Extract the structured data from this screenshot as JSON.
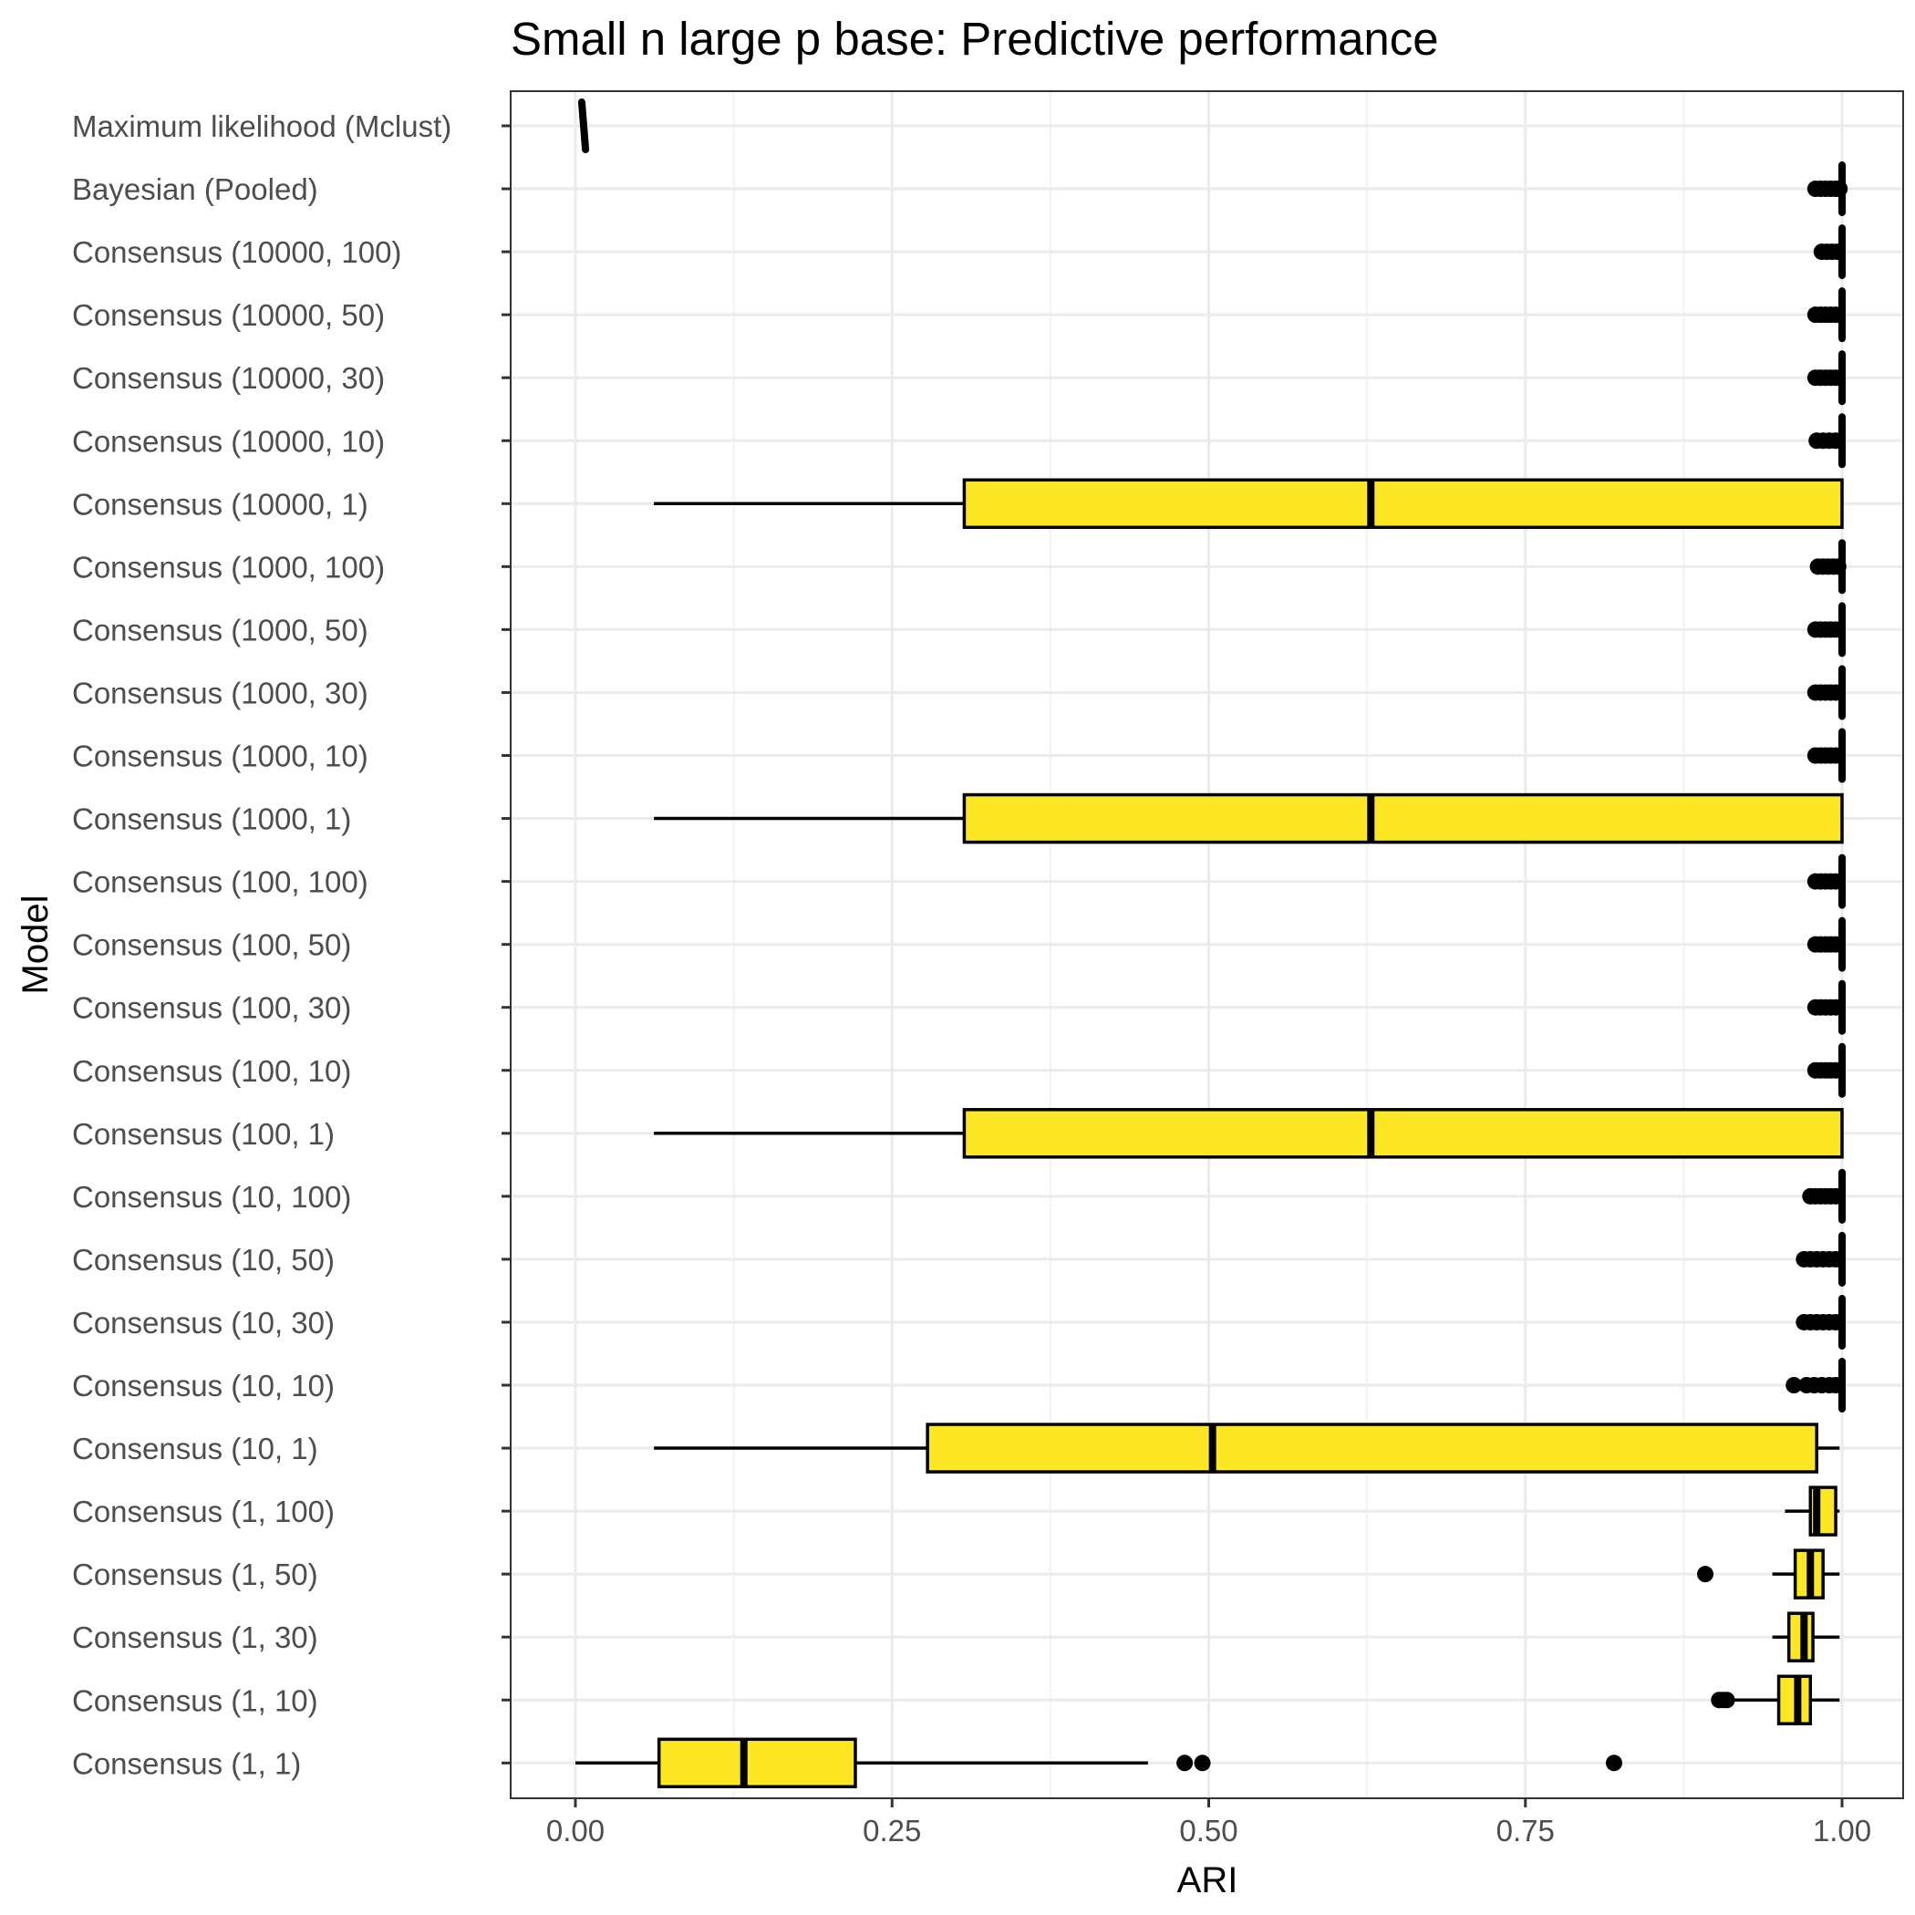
{
  "chart_data": {
    "type": "boxplot",
    "orientation": "horizontal",
    "title": "Small n large p base: Predictive performance",
    "xlabel": "ARI",
    "ylabel": "Model",
    "xlim": [
      -0.1,
      1.05
    ],
    "x_ticks": [
      0,
      0.25,
      0.5,
      0.75,
      1
    ],
    "x_tick_labels": [
      "0.00",
      "0.25",
      "0.50",
      "0.75",
      "1.00"
    ],
    "grid": true,
    "legend": "none",
    "box_fill": "#FDE725",
    "outline_color": "#000000",
    "categories": [
      "Maximum likelihood (Mclust)",
      "Bayesian (Pooled)",
      "Consensus (10000, 100)",
      "Consensus (10000, 50)",
      "Consensus (10000, 30)",
      "Consensus (10000, 10)",
      "Consensus (10000, 1)",
      "Consensus (1000, 100)",
      "Consensus (1000, 50)",
      "Consensus (1000, 30)",
      "Consensus (1000, 10)",
      "Consensus (1000, 1)",
      "Consensus (100, 100)",
      "Consensus (100, 50)",
      "Consensus (100, 30)",
      "Consensus (100, 10)",
      "Consensus (100, 1)",
      "Consensus (10, 100)",
      "Consensus (10, 50)",
      "Consensus (10, 30)",
      "Consensus (10, 10)",
      "Consensus (10, 1)",
      "Consensus (1, 100)",
      "Consensus (1, 50)",
      "Consensus (1, 30)",
      "Consensus (1, 10)",
      "Consensus (1, 1)"
    ],
    "boxes": [
      {
        "min": 0.005,
        "q1": 0.005,
        "median": 0.006,
        "q3": 0.008,
        "max": 0.008,
        "outliers": []
      },
      {
        "min": 1.0,
        "q1": 1.0,
        "median": 1.0,
        "q3": 1.0,
        "max": 1.0,
        "outliers": [
          0.979,
          0.983,
          0.987,
          0.991,
          0.995,
          0.998
        ]
      },
      {
        "min": 1.0,
        "q1": 1.0,
        "median": 1.0,
        "q3": 1.0,
        "max": 1.0,
        "outliers": [
          0.984,
          0.988,
          0.992,
          0.996
        ]
      },
      {
        "min": 1.0,
        "q1": 1.0,
        "median": 1.0,
        "q3": 1.0,
        "max": 1.0,
        "outliers": [
          0.979,
          0.983,
          0.987,
          0.991,
          0.995
        ]
      },
      {
        "min": 1.0,
        "q1": 1.0,
        "median": 1.0,
        "q3": 1.0,
        "max": 1.0,
        "outliers": [
          0.979,
          0.983,
          0.987,
          0.991,
          0.995
        ]
      },
      {
        "min": 1.0,
        "q1": 1.0,
        "median": 1.0,
        "q3": 1.0,
        "max": 1.0,
        "outliers": [
          0.98,
          0.985,
          0.99,
          0.995
        ]
      },
      {
        "min": 0.062,
        "q1": 0.307,
        "median": 0.628,
        "q3": 1.0,
        "max": 1.0,
        "outliers": []
      },
      {
        "min": 1.0,
        "q1": 1.0,
        "median": 1.0,
        "q3": 1.0,
        "max": 1.0,
        "outliers": [
          0.981,
          0.985,
          0.989,
          0.993,
          0.997
        ]
      },
      {
        "min": 1.0,
        "q1": 1.0,
        "median": 1.0,
        "q3": 1.0,
        "max": 1.0,
        "outliers": [
          0.979,
          0.983,
          0.987,
          0.991,
          0.995
        ]
      },
      {
        "min": 1.0,
        "q1": 1.0,
        "median": 1.0,
        "q3": 1.0,
        "max": 1.0,
        "outliers": [
          0.979,
          0.983,
          0.987,
          0.991,
          0.995
        ]
      },
      {
        "min": 1.0,
        "q1": 1.0,
        "median": 1.0,
        "q3": 1.0,
        "max": 1.0,
        "outliers": [
          0.979,
          0.983,
          0.987,
          0.991,
          0.995
        ]
      },
      {
        "min": 0.062,
        "q1": 0.307,
        "median": 0.628,
        "q3": 1.0,
        "max": 1.0,
        "outliers": []
      },
      {
        "min": 1.0,
        "q1": 1.0,
        "median": 1.0,
        "q3": 1.0,
        "max": 1.0,
        "outliers": [
          0.979,
          0.983,
          0.987,
          0.991,
          0.995
        ]
      },
      {
        "min": 1.0,
        "q1": 1.0,
        "median": 1.0,
        "q3": 1.0,
        "max": 1.0,
        "outliers": [
          0.979,
          0.983,
          0.987,
          0.991,
          0.995
        ]
      },
      {
        "min": 1.0,
        "q1": 1.0,
        "median": 1.0,
        "q3": 1.0,
        "max": 1.0,
        "outliers": [
          0.979,
          0.983,
          0.987,
          0.991,
          0.995
        ]
      },
      {
        "min": 1.0,
        "q1": 1.0,
        "median": 1.0,
        "q3": 1.0,
        "max": 1.0,
        "outliers": [
          0.979,
          0.983,
          0.987,
          0.991,
          0.995
        ]
      },
      {
        "min": 0.062,
        "q1": 0.307,
        "median": 0.628,
        "q3": 1.0,
        "max": 1.0,
        "outliers": []
      },
      {
        "min": 1.0,
        "q1": 1.0,
        "median": 1.0,
        "q3": 1.0,
        "max": 1.0,
        "outliers": [
          0.975,
          0.979,
          0.983,
          0.987,
          0.991,
          0.995
        ]
      },
      {
        "min": 1.0,
        "q1": 1.0,
        "median": 1.0,
        "q3": 1.0,
        "max": 1.0,
        "outliers": [
          0.97,
          0.975,
          0.98,
          0.985,
          0.99,
          0.995
        ]
      },
      {
        "min": 1.0,
        "q1": 1.0,
        "median": 1.0,
        "q3": 1.0,
        "max": 1.0,
        "outliers": [
          0.97,
          0.975,
          0.98,
          0.985,
          0.99,
          0.995
        ]
      },
      {
        "min": 1.0,
        "q1": 1.0,
        "median": 1.0,
        "q3": 1.0,
        "max": 1.0,
        "outliers": [
          0.962,
          0.972,
          0.978,
          0.984,
          0.99,
          0.995
        ]
      },
      {
        "min": 0.062,
        "q1": 0.278,
        "median": 0.503,
        "q3": 0.98,
        "max": 0.998,
        "outliers": []
      },
      {
        "min": 0.955,
        "q1": 0.975,
        "median": 0.98,
        "q3": 0.995,
        "max": 0.998,
        "outliers": []
      },
      {
        "min": 0.945,
        "q1": 0.963,
        "median": 0.975,
        "q3": 0.985,
        "max": 0.998,
        "outliers": [
          0.892
        ]
      },
      {
        "min": 0.945,
        "q1": 0.958,
        "median": 0.97,
        "q3": 0.977,
        "max": 0.998,
        "outliers": []
      },
      {
        "min": 0.91,
        "q1": 0.95,
        "median": 0.965,
        "q3": 0.975,
        "max": 0.998,
        "outliers": [
          0.903,
          0.906,
          0.909
        ]
      },
      {
        "min": 0.0,
        "q1": 0.066,
        "median": 0.133,
        "q3": 0.221,
        "max": 0.452,
        "outliers": [
          0.481,
          0.495,
          0.82
        ]
      }
    ]
  }
}
